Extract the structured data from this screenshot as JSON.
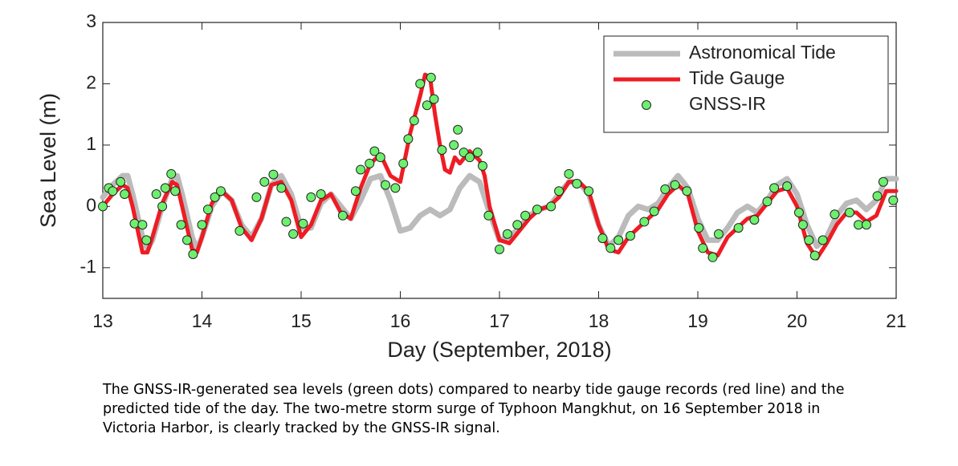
{
  "chart_data": {
    "type": "line-scatter",
    "xlabel": "Day (September, 2018)",
    "ylabel": "Sea Level (m)",
    "xlim": [
      13,
      21
    ],
    "xticks": [
      13,
      14,
      15,
      16,
      17,
      18,
      19,
      20,
      21
    ],
    "ylim": [
      -1.5,
      3
    ],
    "yticks": [
      -1,
      0,
      1,
      2,
      3
    ],
    "legend": "upper right",
    "series": [
      {
        "name": "Astronomical Tide",
        "color": "#bbbbbb",
        "style": "line",
        "x": [
          13.0,
          13.1,
          13.2,
          13.25,
          13.3,
          13.4,
          13.45,
          13.5,
          13.6,
          13.7,
          13.75,
          13.8,
          13.9,
          13.95,
          14.0,
          14.1,
          14.2,
          14.3,
          14.4,
          14.5,
          14.6,
          14.7,
          14.8,
          14.9,
          15.0,
          15.1,
          15.2,
          15.3,
          15.4,
          15.5,
          15.6,
          15.7,
          15.8,
          15.9,
          16.0,
          16.1,
          16.2,
          16.3,
          16.4,
          16.5,
          16.6,
          16.7,
          16.8,
          16.9,
          17.0,
          17.1,
          17.2,
          17.3,
          17.4,
          17.5,
          17.6,
          17.7,
          17.8,
          17.9,
          18.0,
          18.1,
          18.2,
          18.3,
          18.4,
          18.5,
          18.6,
          18.7,
          18.8,
          18.9,
          19.0,
          19.1,
          19.2,
          19.3,
          19.4,
          19.5,
          19.6,
          19.7,
          19.8,
          19.9,
          20.0,
          20.1,
          20.2,
          20.3,
          20.4,
          20.5,
          20.6,
          20.7,
          20.8,
          20.9,
          21.0
        ],
        "values": [
          0.15,
          0.35,
          0.5,
          0.5,
          0.2,
          -0.5,
          -0.7,
          -0.55,
          0.0,
          0.45,
          0.5,
          0.2,
          -0.5,
          -0.7,
          -0.5,
          0.0,
          0.25,
          0.1,
          -0.3,
          -0.5,
          -0.2,
          0.35,
          0.5,
          0.2,
          -0.35,
          -0.35,
          0.05,
          0.2,
          0.0,
          -0.2,
          0.1,
          0.45,
          0.5,
          0.1,
          -0.4,
          -0.35,
          -0.15,
          -0.05,
          -0.15,
          -0.05,
          0.3,
          0.5,
          0.4,
          -0.1,
          -0.55,
          -0.5,
          -0.35,
          -0.15,
          -0.05,
          0.0,
          0.2,
          0.4,
          0.4,
          0.2,
          -0.3,
          -0.65,
          -0.5,
          -0.15,
          0.0,
          -0.05,
          0.05,
          0.3,
          0.5,
          0.3,
          -0.2,
          -0.55,
          -0.55,
          -0.35,
          -0.1,
          0.0,
          -0.1,
          0.1,
          0.35,
          0.45,
          0.2,
          -0.3,
          -0.65,
          -0.5,
          -0.15,
          0.05,
          0.1,
          -0.05,
          0.1,
          0.45,
          0.45
        ]
      },
      {
        "name": "Tide Gauge",
        "color": "#ee1c24",
        "style": "line",
        "x": [
          13.0,
          13.1,
          13.2,
          13.25,
          13.3,
          13.4,
          13.45,
          13.5,
          13.6,
          13.7,
          13.75,
          13.8,
          13.9,
          13.95,
          14.0,
          14.1,
          14.2,
          14.3,
          14.4,
          14.5,
          14.6,
          14.7,
          14.8,
          14.9,
          15.0,
          15.1,
          15.2,
          15.3,
          15.4,
          15.5,
          15.6,
          15.7,
          15.8,
          15.9,
          16.0,
          16.1,
          16.2,
          16.25,
          16.3,
          16.35,
          16.4,
          16.45,
          16.5,
          16.55,
          16.6,
          16.7,
          16.8,
          16.85,
          16.9,
          17.0,
          17.1,
          17.2,
          17.3,
          17.4,
          17.5,
          17.6,
          17.7,
          17.8,
          17.9,
          18.0,
          18.1,
          18.2,
          18.3,
          18.4,
          18.5,
          18.6,
          18.7,
          18.8,
          18.9,
          19.0,
          19.1,
          19.2,
          19.3,
          19.4,
          19.5,
          19.6,
          19.7,
          19.8,
          19.9,
          20.0,
          20.1,
          20.2,
          20.3,
          20.4,
          20.5,
          20.6,
          20.7,
          20.8,
          20.9,
          21.0
        ],
        "values": [
          0.0,
          0.2,
          0.35,
          0.3,
          0.0,
          -0.75,
          -0.75,
          -0.5,
          0.05,
          0.4,
          0.35,
          0.0,
          -0.7,
          -0.75,
          -0.5,
          0.05,
          0.25,
          0.1,
          -0.35,
          -0.55,
          -0.2,
          0.35,
          0.4,
          0.1,
          -0.5,
          -0.3,
          0.1,
          0.2,
          -0.1,
          -0.2,
          0.3,
          0.7,
          0.85,
          0.5,
          0.4,
          1.2,
          1.8,
          2.15,
          2.1,
          1.5,
          1.0,
          0.6,
          0.55,
          0.8,
          0.7,
          0.9,
          0.75,
          0.5,
          0.0,
          -0.55,
          -0.6,
          -0.4,
          -0.2,
          -0.05,
          0.0,
          0.15,
          0.4,
          0.4,
          0.25,
          -0.3,
          -0.7,
          -0.75,
          -0.5,
          -0.35,
          -0.2,
          -0.05,
          0.2,
          0.35,
          0.2,
          -0.4,
          -0.75,
          -0.8,
          -0.5,
          -0.35,
          -0.2,
          -0.15,
          0.05,
          0.25,
          0.3,
          0.0,
          -0.6,
          -0.85,
          -0.6,
          -0.3,
          -0.1,
          -0.1,
          -0.25,
          -0.15,
          0.25,
          0.25
        ]
      },
      {
        "name": "GNSS-IR",
        "color": "#6ef06e",
        "style": "scatter",
        "x": [
          13.0,
          13.06,
          13.1,
          13.18,
          13.22,
          13.32,
          13.4,
          13.44,
          13.54,
          13.6,
          13.63,
          13.69,
          13.73,
          13.79,
          13.85,
          13.91,
          14.0,
          14.06,
          14.13,
          14.19,
          14.38,
          14.55,
          14.63,
          14.72,
          14.8,
          14.85,
          14.92,
          15.02,
          15.1,
          15.2,
          15.42,
          15.55,
          15.6,
          15.69,
          15.74,
          15.8,
          15.85,
          15.95,
          16.03,
          16.08,
          16.14,
          16.2,
          16.27,
          16.31,
          16.34,
          16.42,
          16.54,
          16.58,
          16.64,
          16.7,
          16.78,
          16.83,
          16.89,
          17.0,
          17.08,
          17.18,
          17.26,
          17.38,
          17.52,
          17.6,
          17.7,
          17.78,
          17.9,
          18.04,
          18.12,
          18.2,
          18.32,
          18.46,
          18.56,
          18.67,
          18.77,
          18.89,
          19.01,
          19.05,
          19.15,
          19.21,
          19.41,
          19.57,
          19.7,
          19.77,
          19.9,
          20.02,
          20.06,
          20.12,
          20.18,
          20.26,
          20.38,
          20.53,
          20.62,
          20.7,
          20.81,
          20.87,
          20.97
        ],
        "values": [
          0.0,
          0.3,
          0.25,
          0.4,
          0.2,
          -0.28,
          -0.3,
          -0.55,
          0.2,
          0.0,
          0.3,
          0.53,
          0.25,
          -0.3,
          -0.55,
          -0.78,
          -0.3,
          -0.05,
          0.15,
          0.25,
          -0.4,
          0.15,
          0.4,
          0.52,
          0.3,
          -0.25,
          -0.45,
          -0.28,
          0.15,
          0.2,
          -0.15,
          0.25,
          0.6,
          0.7,
          0.9,
          0.8,
          0.35,
          0.3,
          0.7,
          1.1,
          1.4,
          2.0,
          1.65,
          2.1,
          1.75,
          0.92,
          1.0,
          1.25,
          0.88,
          0.8,
          0.88,
          0.66,
          -0.15,
          -0.7,
          -0.45,
          -0.3,
          -0.15,
          -0.05,
          0.0,
          0.25,
          0.53,
          0.37,
          0.25,
          -0.52,
          -0.68,
          -0.55,
          -0.48,
          -0.25,
          -0.08,
          0.28,
          0.35,
          0.25,
          -0.35,
          -0.68,
          -0.83,
          -0.45,
          -0.35,
          -0.22,
          0.08,
          0.3,
          0.33,
          -0.1,
          -0.3,
          -0.55,
          -0.8,
          -0.55,
          -0.13,
          -0.1,
          -0.3,
          -0.3,
          0.17,
          0.4,
          0.1
        ]
      }
    ]
  },
  "caption": "The GNSS-IR-generated sea levels (green dots) compared to nearby tide gauge records (red line) and the predicted tide of the day. The two-metre storm surge of Typhoon Mangkhut, on 16 September 2018 in Victoria Harbor, is clearly tracked by the GNSS-IR signal."
}
